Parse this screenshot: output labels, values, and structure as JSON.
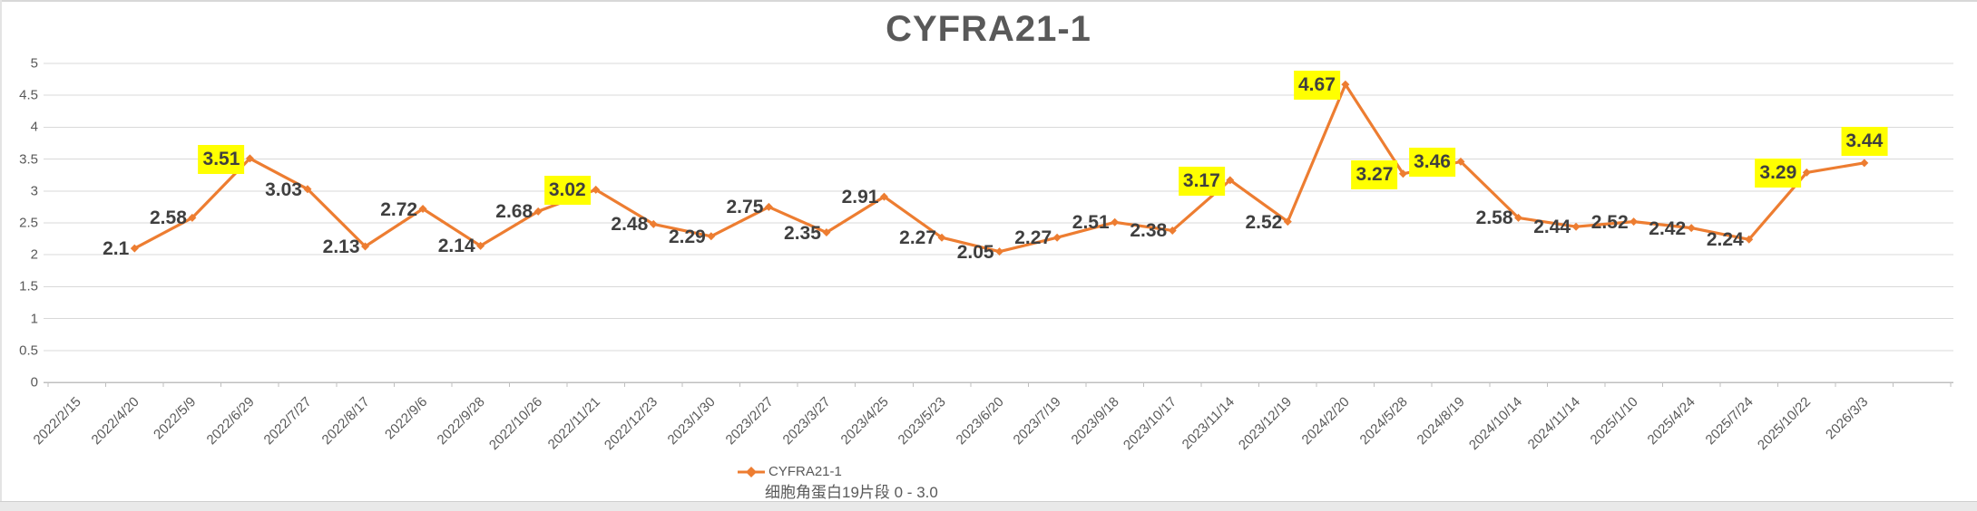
{
  "chart_data": {
    "type": "line",
    "title": "CYFRA21-1",
    "categories": [
      "2022/2/15",
      "2022/4/20",
      "2022/5/9",
      "2022/6/29",
      "2022/7/27",
      "2022/8/17",
      "2022/9/6",
      "2022/9/28",
      "2022/10/26",
      "2022/11/21",
      "2022/12/23",
      "2023/1/30",
      "2023/2/27",
      "2023/3/27",
      "2023/4/25",
      "2023/5/23",
      "2023/6/20",
      "2023/7/19",
      "2023/9/18",
      "2023/10/17",
      "2023/11/14",
      "2023/12/19",
      "2024/2/20",
      "2024/5/28",
      "2024/8/19",
      "2024/10/14",
      "2024/11/14",
      "2025/1/10",
      "2025/4/24",
      "2025/7/24",
      "2025/10/22",
      "2026/3/3"
    ],
    "series": [
      {
        "name": "CYFRA21-1",
        "values": [
          null,
          2.1,
          2.58,
          3.51,
          3.03,
          2.13,
          2.72,
          2.14,
          2.68,
          3.02,
          2.48,
          2.29,
          2.75,
          2.35,
          2.91,
          2.27,
          2.05,
          2.27,
          2.51,
          2.38,
          3.17,
          2.52,
          4.67,
          3.27,
          3.46,
          2.58,
          2.44,
          2.52,
          2.42,
          2.24,
          3.29,
          3.44
        ]
      }
    ],
    "highlighted_indexes": [
      3,
      9,
      20,
      22,
      23,
      24,
      30,
      31
    ],
    "ylim": [
      0,
      5
    ],
    "ytick_step": 0.5,
    "yticks": [
      "0",
      "0.5",
      "1",
      "1.5",
      "2",
      "2.5",
      "3",
      "3.5",
      "4",
      "4.5",
      "5"
    ],
    "grid": true,
    "legend_position": "bottom",
    "legend": {
      "series_label": "CYFRA21-1",
      "reference_note": "细胞角蛋白19片段 0 - 3.0"
    },
    "colors": {
      "series_line": "#ED7D31",
      "marker": "#ED7D31",
      "highlight_bg": "#FFFF00",
      "value_text": "#3f3f3f",
      "axis_text": "#595959",
      "title_text": "#595959",
      "gridline": "#D9D9D9",
      "axis_line": "#BFBFBF"
    }
  }
}
